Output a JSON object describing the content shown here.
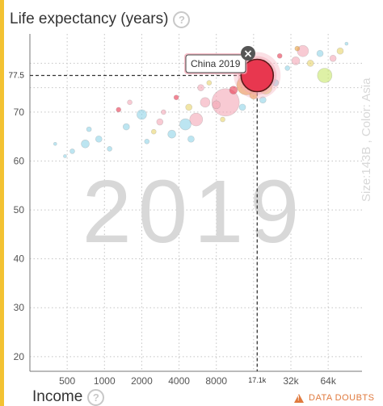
{
  "ui": {
    "y_axis_title": "Life expectancy (years)",
    "x_axis_title": "Income",
    "help_glyph": "?",
    "data_doubts_label": "DATA DOUBTS",
    "year_watermark": "2019",
    "side_label": "Size:143B , Color: Asia",
    "tooltip_label": "China 2019",
    "close_glyph": "×",
    "y_highlight_label": "77.5",
    "x_highlight_label": "17.1k",
    "accent_color": "#f3c232",
    "warning_color": "#e07a3e",
    "icons": [
      "help-icon",
      "close-icon",
      "warning-icon"
    ]
  },
  "chart_data": {
    "type": "scatter",
    "title": "",
    "xlabel": "Income",
    "ylabel": "Life expectancy (years)",
    "x_scale": "log",
    "xlim": [
      250,
      120000
    ],
    "ylim": [
      17,
      86
    ],
    "x_ticks": [
      500,
      1000,
      2000,
      4000,
      8000,
      32000,
      64000
    ],
    "x_tick_labels": [
      "500",
      "1000",
      "2000",
      "4000",
      "8000",
      "32k",
      "64k"
    ],
    "y_ticks": [
      20,
      30,
      40,
      50,
      60,
      70
    ],
    "y_tick_labels": [
      "20",
      "30",
      "40",
      "50",
      "60",
      "70"
    ],
    "grid": true,
    "highlight": {
      "x": 17100,
      "y": 77.5,
      "label": "China 2019",
      "color": "#e8374f"
    },
    "points": [
      {
        "x": 17100,
        "y": 77.5,
        "r": 20,
        "c": "#e8374f"
      },
      {
        "x": 14000,
        "y": 75.5,
        "r": 12,
        "c": "#e89f3a"
      },
      {
        "x": 20000,
        "y": 75.0,
        "r": 8,
        "c": "#e8d36a"
      },
      {
        "x": 9500,
        "y": 72.0,
        "r": 17,
        "c": "#f4a7b5"
      },
      {
        "x": 5500,
        "y": 68.5,
        "r": 8,
        "c": "#f4a7b5"
      },
      {
        "x": 8000,
        "y": 71.5,
        "r": 5,
        "c": "#f4a7b5"
      },
      {
        "x": 11000,
        "y": 74.5,
        "r": 5,
        "c": "#e8374f"
      },
      {
        "x": 6500,
        "y": 72.0,
        "r": 6,
        "c": "#f4a7b5"
      },
      {
        "x": 4500,
        "y": 67.5,
        "r": 7,
        "c": "#8fd4e8"
      },
      {
        "x": 3500,
        "y": 65.5,
        "r": 5,
        "c": "#8fd4e8"
      },
      {
        "x": 2000,
        "y": 69.5,
        "r": 6,
        "c": "#8fd4e8"
      },
      {
        "x": 1500,
        "y": 67.0,
        "r": 4,
        "c": "#8fd4e8"
      },
      {
        "x": 900,
        "y": 64.5,
        "r": 4,
        "c": "#8fd4e8"
      },
      {
        "x": 700,
        "y": 63.5,
        "r": 5,
        "c": "#8fd4e8"
      },
      {
        "x": 550,
        "y": 62.0,
        "r": 3,
        "c": "#8fd4e8"
      },
      {
        "x": 1100,
        "y": 62.5,
        "r": 3,
        "c": "#8fd4e8"
      },
      {
        "x": 2500,
        "y": 66.0,
        "r": 3,
        "c": "#e8d36a"
      },
      {
        "x": 3000,
        "y": 70.0,
        "r": 3,
        "c": "#f4a7b5"
      },
      {
        "x": 4800,
        "y": 71.0,
        "r": 4,
        "c": "#e8d36a"
      },
      {
        "x": 6000,
        "y": 75.0,
        "r": 4,
        "c": "#f4a7b5"
      },
      {
        "x": 3800,
        "y": 73.0,
        "r": 3,
        "c": "#e8374f"
      },
      {
        "x": 1600,
        "y": 72.0,
        "r": 3,
        "c": "#f4a7b5"
      },
      {
        "x": 2800,
        "y": 68.0,
        "r": 4,
        "c": "#f4a7b5"
      },
      {
        "x": 2200,
        "y": 64.0,
        "r": 3,
        "c": "#8fd4e8"
      },
      {
        "x": 5000,
        "y": 64.5,
        "r": 4,
        "c": "#8fd4e8"
      },
      {
        "x": 13000,
        "y": 71.0,
        "r": 4,
        "c": "#8fd4e8"
      },
      {
        "x": 9000,
        "y": 68.5,
        "r": 3,
        "c": "#e8d36a"
      },
      {
        "x": 24000,
        "y": 76.0,
        "r": 4,
        "c": "#8fd4e8"
      },
      {
        "x": 35000,
        "y": 80.5,
        "r": 5,
        "c": "#f4a7b5"
      },
      {
        "x": 40000,
        "y": 82.5,
        "r": 7,
        "c": "#f4a7b5"
      },
      {
        "x": 60000,
        "y": 77.5,
        "r": 9,
        "c": "#c8e86a"
      },
      {
        "x": 46000,
        "y": 80.0,
        "r": 4,
        "c": "#e8d36a"
      },
      {
        "x": 55000,
        "y": 82.0,
        "r": 4,
        "c": "#8fd4e8"
      },
      {
        "x": 70000,
        "y": 81.0,
        "r": 4,
        "c": "#f4a7b5"
      },
      {
        "x": 80000,
        "y": 82.5,
        "r": 4,
        "c": "#e8d36a"
      },
      {
        "x": 30000,
        "y": 79.0,
        "r": 3,
        "c": "#8fd4e8"
      },
      {
        "x": 26000,
        "y": 81.5,
        "r": 3,
        "c": "#e8374f"
      },
      {
        "x": 36000,
        "y": 83.0,
        "r": 3,
        "c": "#e89f3a"
      },
      {
        "x": 90000,
        "y": 84.0,
        "r": 2,
        "c": "#8fd4e8"
      },
      {
        "x": 1300,
        "y": 70.5,
        "r": 3,
        "c": "#e8374f"
      },
      {
        "x": 7000,
        "y": 76.0,
        "r": 3,
        "c": "#e8d36a"
      },
      {
        "x": 400,
        "y": 63.5,
        "r": 2,
        "c": "#8fd4e8"
      },
      {
        "x": 480,
        "y": 61.0,
        "r": 2,
        "c": "#8fd4e8"
      },
      {
        "x": 750,
        "y": 66.5,
        "r": 3,
        "c": "#8fd4e8"
      },
      {
        "x": 16000,
        "y": 73.5,
        "r": 5,
        "c": "#e89f3a"
      },
      {
        "x": 19000,
        "y": 72.5,
        "r": 4,
        "c": "#8fd4e8"
      }
    ]
  }
}
